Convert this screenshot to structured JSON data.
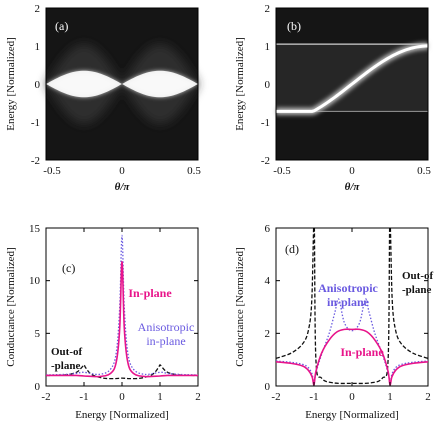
{
  "chart_data": [
    {
      "panel": "(a)",
      "type": "heatmap",
      "xlabel": "θ/π",
      "ylabel": "Energy [Normalized]",
      "xlim": [
        -0.5,
        0.5
      ],
      "ylim": [
        -2,
        2
      ],
      "xticks": [
        "-0.5",
        "0",
        "0.5"
      ],
      "yticks": [
        "-2",
        "-1",
        "0",
        "1",
        "2"
      ],
      "band": "E = ±0.35·|sin(2θ)|",
      "background": "#151515",
      "highlight": "#ffffff"
    },
    {
      "panel": "(b)",
      "type": "heatmap",
      "xlabel": "θ/π",
      "ylabel": "Energy [Normalized]",
      "xlim": [
        -0.5,
        0.5
      ],
      "ylim": [
        -2,
        2
      ],
      "xticks": [
        "-0.5",
        "0",
        "0.5"
      ],
      "yticks": [
        "-2",
        "-1",
        "0",
        "1",
        "2"
      ],
      "band": "E = sin(θ) between gap edges -0.72 and 1.05",
      "gap": [
        -0.72,
        1.05
      ],
      "background": "#151515",
      "highlight": "#ffffff"
    },
    {
      "panel": "(c)",
      "type": "line",
      "xlabel": "Energy [Normalized]",
      "ylabel": "Conductance [Normalized]",
      "xlim": [
        -2,
        2
      ],
      "ylim": [
        0,
        15
      ],
      "xticks": [
        "-2",
        "-1",
        "0",
        "1",
        "2"
      ],
      "yticks": [
        "0",
        "5",
        "10",
        "15"
      ],
      "grid": false,
      "series": [
        {
          "name": "In-plane",
          "color": "#e8148a",
          "style": "solid",
          "x": [
            -2,
            -1.5,
            -1.2,
            -1,
            -0.6,
            -0.3,
            -0.15,
            -0.06,
            0,
            0.06,
            0.15,
            0.3,
            0.6,
            1,
            1.2,
            1.5,
            2
          ],
          "y": [
            1.0,
            1.0,
            1.0,
            0.95,
            0.9,
            1.2,
            2.3,
            5.5,
            11.8,
            5.5,
            2.3,
            1.2,
            0.9,
            0.95,
            1.0,
            1.0,
            1.0
          ]
        },
        {
          "name": "Anisotropic in-plane",
          "color": "#6a5ae0",
          "style": "dotted",
          "x": [
            -2,
            -1.5,
            -1.2,
            -1,
            -0.6,
            -0.3,
            -0.15,
            -0.06,
            0,
            0.06,
            0.15,
            0.3,
            0.6,
            1,
            1.2,
            1.5,
            2
          ],
          "y": [
            1.05,
            1.1,
            1.2,
            1.3,
            1.1,
            1.6,
            3.2,
            7.5,
            14.3,
            7.5,
            3.2,
            1.6,
            1.1,
            1.3,
            1.2,
            1.1,
            1.05
          ]
        },
        {
          "name": "Out-of-plane",
          "color": "#111111",
          "style": "dashed",
          "x": [
            -2,
            -1.5,
            -1.2,
            -1.05,
            -1,
            -0.95,
            -0.8,
            -0.5,
            -0.2,
            0,
            0.2,
            0.5,
            0.8,
            0.95,
            1,
            1.05,
            1.2,
            1.5,
            2
          ],
          "y": [
            1.0,
            1.05,
            1.3,
            1.8,
            2.0,
            1.7,
            1.1,
            0.75,
            0.7,
            0.75,
            0.7,
            0.75,
            1.1,
            1.7,
            2.0,
            1.8,
            1.3,
            1.05,
            1.0
          ]
        }
      ],
      "annotations": [
        {
          "text": "In-plane",
          "color": "#e8148a"
        },
        {
          "text": "Anisotropic",
          "color": "#6a5ae0"
        },
        {
          "text": "in-plane",
          "color": "#6a5ae0"
        },
        {
          "text": "Out-of",
          "color": "#111111"
        },
        {
          "text": "-plane",
          "color": "#111111"
        }
      ]
    },
    {
      "panel": "(d)",
      "type": "line",
      "xlabel": "Energy [Normalized]",
      "ylabel": "Conductance [Normalized]",
      "xlim": [
        -2,
        2
      ],
      "ylim": [
        0,
        6
      ],
      "xticks": [
        "-2",
        "-1",
        "0",
        "1",
        "2"
      ],
      "yticks": [
        "0",
        "2",
        "4",
        "6"
      ],
      "grid": false,
      "series": [
        {
          "name": "In-plane",
          "color": "#e8148a",
          "style": "solid",
          "x": [
            -2,
            -1.6,
            -1.3,
            -1.15,
            -1.05,
            -1.0,
            -0.95,
            -0.8,
            -0.6,
            -0.4,
            -0.2,
            0,
            0.2,
            0.4,
            0.6,
            0.8,
            0.95,
            1.0,
            1.05,
            1.15,
            1.3,
            1.6,
            2
          ],
          "y": [
            0.92,
            0.86,
            0.76,
            0.6,
            0.35,
            0.05,
            0.55,
            1.25,
            1.75,
            2.05,
            2.15,
            2.15,
            2.15,
            2.05,
            1.75,
            1.25,
            0.55,
            0.05,
            0.35,
            0.6,
            0.76,
            0.86,
            0.92
          ]
        },
        {
          "name": "Anisotropic in-plane",
          "color": "#6a5ae0",
          "style": "dotted",
          "x": [
            -2,
            -1.6,
            -1.3,
            -1.15,
            -1.05,
            -1.0,
            -0.95,
            -0.8,
            -0.6,
            -0.45,
            -0.35,
            -0.2,
            0,
            0.2,
            0.35,
            0.45,
            0.6,
            0.8,
            0.95,
            1.0,
            1.05,
            1.15,
            1.3,
            1.6,
            2
          ],
          "y": [
            0.95,
            0.9,
            0.82,
            0.7,
            0.45,
            0.1,
            0.5,
            1.2,
            2.0,
            2.8,
            3.3,
            2.4,
            2.1,
            2.4,
            3.3,
            2.8,
            2.0,
            1.2,
            0.5,
            0.1,
            0.45,
            0.7,
            0.82,
            0.9,
            0.95
          ]
        },
        {
          "name": "Out-of-plane",
          "color": "#111111",
          "style": "dashed",
          "x": [
            -2,
            -1.6,
            -1.3,
            -1.15,
            -1.06,
            -1.01,
            -0.99,
            -0.95,
            -0.8,
            -0.5,
            0,
            0.5,
            0.8,
            0.95,
            0.99,
            1.01,
            1.06,
            1.15,
            1.3,
            1.6,
            2
          ],
          "y": [
            1.05,
            1.25,
            1.6,
            2.1,
            3.2,
            6.0,
            6.0,
            1.0,
            0.3,
            0.12,
            0.1,
            0.12,
            0.3,
            1.0,
            6.0,
            6.0,
            3.2,
            2.1,
            1.6,
            1.25,
            1.05
          ]
        }
      ],
      "annotations": [
        {
          "text": "Anisotropic",
          "color": "#6a5ae0"
        },
        {
          "text": "in-plane",
          "color": "#6a5ae0"
        },
        {
          "text": "In-plane",
          "color": "#e8148a"
        },
        {
          "text": "Out-of",
          "color": "#111111"
        },
        {
          "text": "-plane",
          "color": "#111111"
        }
      ]
    }
  ]
}
